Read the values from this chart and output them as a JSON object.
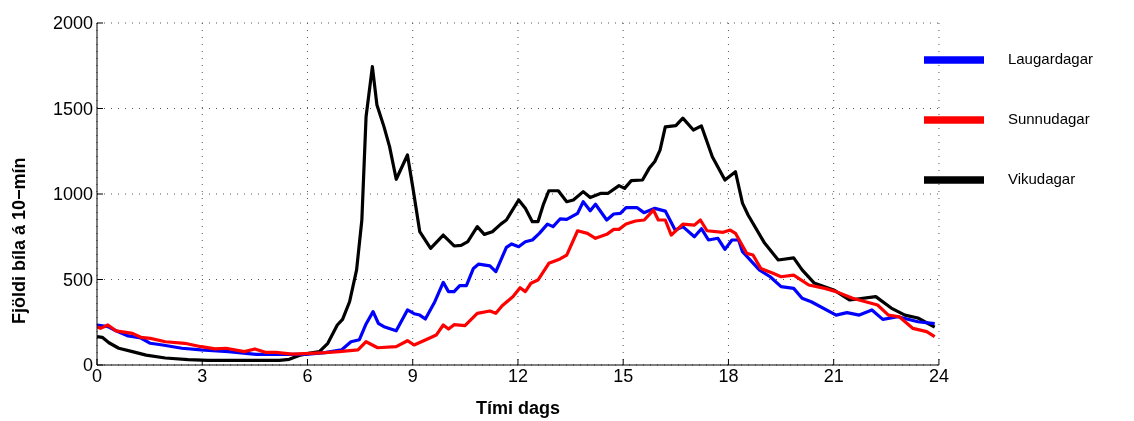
{
  "chart_data": {
    "type": "line",
    "xlabel": "Tími dags",
    "ylabel": "Fjöldi bíla á 10−mín",
    "xlim": [
      0,
      24
    ],
    "xticks": [
      0,
      3,
      6,
      9,
      12,
      15,
      18,
      21,
      24
    ],
    "ylim": [
      0,
      2000
    ],
    "yticks": [
      0,
      500,
      1000,
      1500,
      2000
    ],
    "grid": true,
    "legend": "top right",
    "marker": "none",
    "line_style": "solid",
    "series": [
      {
        "name": "Vikudagar",
        "color": "#000000",
        "x": [
          0,
          0.15,
          0.34,
          0.62,
          1.01,
          1.4,
          1.95,
          2.6,
          3.17,
          4.18,
          5.2,
          5.48,
          5.8,
          6.03,
          6.34,
          6.58,
          6.85,
          7.0,
          7.2,
          7.4,
          7.55,
          7.67,
          7.85,
          7.98,
          8.18,
          8.34,
          8.53,
          8.85,
          9.0,
          9.2,
          9.51,
          9.87,
          10.18,
          10.38,
          10.57,
          10.84,
          11.04,
          11.27,
          11.51,
          11.67,
          12.02,
          12.21,
          12.41,
          12.57,
          12.72,
          12.88,
          13.15,
          13.39,
          13.58,
          13.86,
          14.06,
          14.37,
          14.57,
          14.88,
          15.04,
          15.23,
          15.55,
          15.74,
          15.9,
          16.05,
          16.2,
          16.5,
          16.7,
          17.0,
          17.23,
          17.54,
          17.9,
          18.2,
          18.4,
          18.56,
          19.03,
          19.42,
          19.86,
          20.1,
          20.44,
          21.0,
          21.46,
          22.2,
          22.64,
          23.03,
          23.4,
          23.88
        ],
        "values": [
          166,
          162,
          130,
          98,
          78,
          58,
          41,
          31,
          27,
          27,
          27,
          33,
          58,
          68,
          78,
          127,
          234,
          267,
          370,
          556,
          848,
          1452,
          1745,
          1520,
          1394,
          1277,
          1086,
          1228,
          1043,
          780,
          682,
          760,
          696,
          700,
          721,
          809,
          764,
          779,
          824,
          848,
          965,
          916,
          838,
          838,
          936,
          1019,
          1019,
          955,
          965,
          1014,
          979,
          1004,
          1004,
          1049,
          1033,
          1078,
          1082,
          1150,
          1190,
          1257,
          1393,
          1400,
          1444,
          1374,
          1398,
          1218,
          1082,
          1130,
          947,
          877,
          713,
          614,
          626,
          556,
          480,
          439,
          380,
          400,
          333,
          292,
          275,
          222
        ]
      },
      {
        "name": "Laugardagar",
        "color": "#0000ff",
        "x": [
          0,
          0.31,
          0.54,
          0.89,
          1.25,
          1.52,
          1.87,
          2.42,
          2.97,
          3.75,
          4.54,
          5.48,
          5.95,
          6.5,
          6.97,
          7.24,
          7.48,
          7.67,
          7.87,
          8.02,
          8.18,
          8.53,
          8.85,
          9.04,
          9.2,
          9.36,
          9.63,
          9.87,
          10.02,
          10.18,
          10.34,
          10.53,
          10.73,
          10.88,
          11.2,
          11.37,
          11.67,
          11.82,
          12.02,
          12.21,
          12.41,
          12.61,
          12.84,
          13.0,
          13.2,
          13.39,
          13.7,
          13.86,
          14.06,
          14.21,
          14.53,
          14.73,
          14.92,
          15.08,
          15.4,
          15.59,
          15.9,
          16.2,
          16.48,
          16.7,
          17.03,
          17.23,
          17.43,
          17.7,
          17.9,
          18.1,
          18.29,
          18.4,
          18.88,
          19.19,
          19.5,
          19.86,
          20.1,
          20.36,
          21.07,
          21.38,
          21.73,
          22.09,
          22.4,
          22.83,
          23.4,
          23.88
        ],
        "values": [
          234,
          224,
          200,
          170,
          158,
          127,
          117,
          98,
          88,
          78,
          62,
          62,
          62,
          72,
          88,
          136,
          148,
          240,
          312,
          244,
          224,
          200,
          322,
          300,
          292,
          269,
          370,
          483,
          429,
          429,
          464,
          464,
          565,
          590,
          580,
          546,
          688,
          708,
          692,
          721,
          731,
          770,
          824,
          809,
          854,
          852,
          887,
          955,
          902,
          940,
          848,
          883,
          887,
          920,
          920,
          891,
          916,
          900,
          790,
          809,
          750,
          797,
          731,
          741,
          676,
          731,
          731,
          663,
          556,
          516,
          458,
          448,
          390,
          370,
          292,
          306,
          292,
          322,
          267,
          282,
          253,
          242
        ]
      },
      {
        "name": "Sunnudagar",
        "color": "#ff0000",
        "x": [
          0,
          0.1,
          0.31,
          0.54,
          1.01,
          1.25,
          1.52,
          1.95,
          2.5,
          2.97,
          3.37,
          3.68,
          4.2,
          4.5,
          4.8,
          5.1,
          5.56,
          6.1,
          6.5,
          6.9,
          7.44,
          7.67,
          8.0,
          8.53,
          8.85,
          9.04,
          9.47,
          9.67,
          9.87,
          10.02,
          10.18,
          10.49,
          10.84,
          11.2,
          11.37,
          11.55,
          11.86,
          12.06,
          12.21,
          12.37,
          12.57,
          12.88,
          13.2,
          13.39,
          13.7,
          13.98,
          14.21,
          14.53,
          14.73,
          14.88,
          15.08,
          15.35,
          15.6,
          15.86,
          16.0,
          16.2,
          16.37,
          16.7,
          17.03,
          17.2,
          17.39,
          17.85,
          18.05,
          18.2,
          18.52,
          18.7,
          18.92,
          19.27,
          19.5,
          19.86,
          20.29,
          20.75,
          21.07,
          21.54,
          22.25,
          22.56,
          22.87,
          23.26,
          23.65,
          23.88
        ],
        "values": [
          224,
          214,
          234,
          200,
          185,
          162,
          156,
          136,
          127,
          107,
          94,
          98,
          78,
          94,
          74,
          74,
          64,
          68,
          72,
          78,
          88,
          136,
          101,
          107,
          142,
          117,
          156,
          175,
          234,
          210,
          236,
          230,
          302,
          316,
          302,
          347,
          400,
          452,
          429,
          478,
          497,
          595,
          620,
          643,
          785,
          770,
          741,
          764,
          793,
          793,
          824,
          842,
          848,
          906,
          848,
          848,
          760,
          824,
          818,
          848,
          785,
          776,
          789,
          770,
          653,
          643,
          565,
          536,
          516,
          526,
          468,
          448,
          429,
          390,
          351,
          292,
          282,
          214,
          195,
          166
        ]
      }
    ]
  }
}
